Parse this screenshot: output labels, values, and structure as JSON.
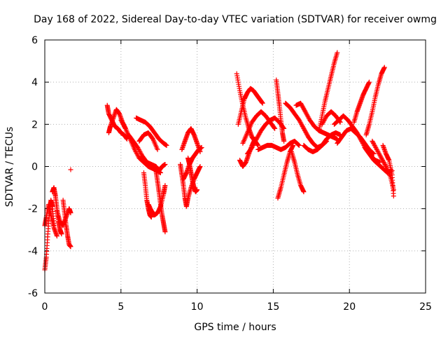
{
  "chart_data": {
    "type": "scatter",
    "title": "Day 168 of 2022, Sidereal Day-to-day VTEC variation (SDTVAR) for receiver owmg",
    "xlabel": "GPS time / hours",
    "ylabel": "SDTVAR / TECUs",
    "xlim": [
      0,
      25
    ],
    "ylim": [
      -6,
      6
    ],
    "x_ticks": [
      0,
      5,
      10,
      15,
      20,
      25
    ],
    "y_ticks": [
      -6,
      -4,
      -2,
      0,
      2,
      4,
      6
    ],
    "x_tick_labels": [
      "0",
      "5",
      "10",
      "15",
      "20",
      "25"
    ],
    "y_tick_labels": [
      "-6",
      "-4",
      "-2",
      "0",
      "2",
      "4",
      "6"
    ],
    "grid": true,
    "marker": "+",
    "color": "#ff0000",
    "series": [
      {
        "name": "SDTVAR",
        "tracks": [
          {
            "x": [
              0.0,
              0.1,
              0.2,
              0.3,
              0.4,
              0.5,
              0.6
            ],
            "y": [
              -4.9,
              -4.3,
              -3.2,
              -2.2,
              -1.6,
              -1.9,
              -2.8
            ]
          },
          {
            "x": [
              0.0,
              0.1,
              0.25,
              0.4,
              0.6,
              0.8
            ],
            "y": [
              -2.8,
              -2.4,
              -1.8,
              -2.3,
              -2.9,
              -3.3
            ]
          },
          {
            "x": [
              0.5,
              0.6,
              0.7,
              0.8,
              0.9,
              1.0,
              1.1
            ],
            "y": [
              -1.2,
              -1.0,
              -1.4,
              -2.0,
              -2.6,
              -3.0,
              -3.2
            ]
          },
          {
            "x": [
              0.8,
              1.0,
              1.2,
              1.4,
              1.6,
              1.7
            ],
            "y": [
              -2.1,
              -2.6,
              -2.8,
              -2.4,
              -2.0,
              -2.2
            ]
          },
          {
            "x": [
              1.2,
              1.3,
              1.4,
              1.5,
              1.6,
              1.7
            ],
            "y": [
              -1.6,
              -2.2,
              -2.8,
              -3.3,
              -3.7,
              -3.8
            ]
          },
          {
            "x": [
              1.7
            ],
            "y": [
              -0.15
            ]
          },
          {
            "x": [
              4.1,
              4.2,
              4.4,
              4.6,
              4.8,
              5.0,
              5.2,
              5.4
            ],
            "y": [
              2.9,
              2.5,
              2.2,
              1.9,
              1.8,
              1.6,
              1.5,
              1.3
            ]
          },
          {
            "x": [
              4.2,
              4.3,
              4.5,
              4.7,
              4.9,
              5.1,
              5.3
            ],
            "y": [
              1.6,
              1.9,
              2.3,
              2.7,
              2.5,
              2.1,
              1.8
            ]
          },
          {
            "x": [
              5.0,
              5.3,
              5.6,
              5.9,
              6.2,
              6.5,
              6.8,
              7.1,
              7.4,
              7.6
            ],
            "y": [
              2.2,
              1.8,
              1.3,
              0.8,
              0.4,
              0.2,
              0.0,
              -0.1,
              -0.2,
              -0.3
            ]
          },
          {
            "x": [
              5.5,
              5.8,
              6.1,
              6.4,
              6.7,
              7.0,
              7.3,
              7.5,
              7.7,
              7.9
            ],
            "y": [
              1.5,
              1.2,
              0.9,
              0.5,
              0.2,
              0.1,
              0.0,
              -0.2,
              0.0,
              0.1
            ]
          },
          {
            "x": [
              6.0,
              6.3,
              6.6,
              6.9,
              7.2,
              7.5,
              7.8,
              8.0
            ],
            "y": [
              2.3,
              2.2,
              2.1,
              1.9,
              1.6,
              1.3,
              1.1,
              1.0
            ]
          },
          {
            "x": [
              6.2,
              6.5,
              6.8,
              7.1,
              7.4
            ],
            "y": [
              1.2,
              1.5,
              1.6,
              1.3,
              0.8
            ]
          },
          {
            "x": [
              6.5,
              6.6,
              6.7,
              6.8,
              6.9,
              7.0
            ],
            "y": [
              -0.3,
              -0.9,
              -1.6,
              -2.0,
              -2.3,
              -2.4
            ]
          },
          {
            "x": [
              6.8,
              7.0,
              7.2,
              7.4,
              7.6,
              7.8,
              7.9
            ],
            "y": [
              -1.8,
              -2.1,
              -2.3,
              -2.2,
              -1.9,
              -1.3,
              -0.9
            ]
          },
          {
            "x": [
              7.3,
              7.4,
              7.5,
              7.6,
              7.7,
              7.8,
              7.9
            ],
            "y": [
              -0.2,
              -0.7,
              -1.2,
              -1.8,
              -2.3,
              -2.7,
              -3.1
            ]
          },
          {
            "x": [
              8.9,
              9.0,
              9.1,
              9.2,
              9.3,
              9.4,
              9.6,
              9.8,
              10.0,
              10.2
            ],
            "y": [
              0.1,
              -0.4,
              -0.9,
              -1.5,
              -1.9,
              -1.5,
              -1.0,
              -0.6,
              -0.3,
              0.0
            ]
          },
          {
            "x": [
              9.0,
              9.2,
              9.4,
              9.6,
              9.8,
              10.0,
              10.2
            ],
            "y": [
              0.8,
              1.2,
              1.6,
              1.8,
              1.5,
              1.1,
              0.7
            ]
          },
          {
            "x": [
              9.1,
              9.3,
              9.5,
              9.7,
              9.9,
              10.1,
              10.3
            ],
            "y": [
              -0.6,
              -0.3,
              0.1,
              0.4,
              0.6,
              0.8,
              0.9
            ]
          },
          {
            "x": [
              9.4,
              9.5,
              9.6,
              9.7,
              9.8,
              9.9,
              10.0
            ],
            "y": [
              0.4,
              0.1,
              -0.3,
              -0.7,
              -1.0,
              -1.2,
              -1.1
            ]
          },
          {
            "x": [
              12.6,
              12.8,
              13.0,
              13.2,
              13.4,
              13.6,
              13.8,
              14.0
            ],
            "y": [
              4.4,
              3.6,
              2.9,
              2.3,
              1.8,
              1.4,
              1.2,
              1.0
            ]
          },
          {
            "x": [
              12.7,
              12.9,
              13.1,
              13.3,
              13.5,
              13.7,
              13.9,
              14.1,
              14.3
            ],
            "y": [
              2.0,
              2.6,
              3.2,
              3.5,
              3.7,
              3.6,
              3.4,
              3.2,
              3.0
            ]
          },
          {
            "x": [
              12.8,
              13.0,
              13.2,
              13.4,
              13.6,
              13.8
            ],
            "y": [
              0.3,
              0.0,
              0.2,
              0.6,
              1.0,
              1.3
            ]
          },
          {
            "x": [
              13.0,
              13.3,
              13.6,
              13.9,
              14.2,
              14.5,
              14.8,
              15.1
            ],
            "y": [
              1.1,
              1.6,
              2.1,
              2.4,
              2.6,
              2.4,
              2.1,
              1.8
            ]
          },
          {
            "x": [
              13.3,
              13.6,
              13.9,
              14.2,
              14.5,
              14.8,
              15.1,
              15.4,
              15.7
            ],
            "y": [
              0.6,
              0.9,
              1.3,
              1.7,
              2.0,
              2.2,
              2.3,
              2.1,
              1.8
            ]
          },
          {
            "x": [
              14.0,
              14.3,
              14.6,
              14.9,
              15.2,
              15.5,
              15.8,
              16.1,
              16.4,
              16.7
            ],
            "y": [
              0.8,
              0.9,
              1.0,
              1.0,
              0.9,
              0.8,
              0.9,
              1.1,
              1.2,
              1.0
            ]
          },
          {
            "x": [
              15.2,
              15.3,
              15.4,
              15.5,
              15.6,
              15.7
            ],
            "y": [
              4.1,
              3.5,
              2.9,
              2.2,
              1.6,
              1.2
            ]
          },
          {
            "x": [
              15.3,
              15.5,
              15.7,
              15.9,
              16.1,
              16.3
            ],
            "y": [
              -1.5,
              -1.0,
              -0.4,
              0.2,
              0.7,
              1.0
            ]
          },
          {
            "x": [
              15.8,
              16.1,
              16.4,
              16.7,
              17.0,
              17.3,
              17.6,
              17.9,
              18.2,
              18.5
            ],
            "y": [
              3.0,
              2.8,
              2.5,
              2.2,
              1.8,
              1.4,
              1.1,
              0.9,
              1.0,
              1.2
            ]
          },
          {
            "x": [
              16.2,
              16.4,
              16.6,
              16.8,
              17.0
            ],
            "y": [
              0.7,
              0.2,
              -0.4,
              -0.9,
              -1.2
            ]
          },
          {
            "x": [
              16.5,
              16.8,
              17.1,
              17.4,
              17.7,
              18.0,
              18.3,
              18.6,
              18.9,
              19.2
            ],
            "y": [
              2.9,
              3.0,
              2.6,
              2.2,
              1.9,
              1.7,
              1.6,
              1.5,
              1.4,
              1.3
            ]
          },
          {
            "x": [
              17.0,
              17.3,
              17.6,
              17.9,
              18.2,
              18.5,
              18.8,
              19.1,
              19.4
            ],
            "y": [
              1.0,
              0.8,
              0.7,
              0.8,
              1.0,
              1.3,
              1.5,
              1.6,
              1.5
            ]
          },
          {
            "x": [
              18.0,
              18.2,
              18.4,
              18.6,
              18.8,
              19.0,
              19.2
            ],
            "y": [
              1.7,
              2.4,
              3.1,
              3.7,
              4.3,
              4.9,
              5.4
            ]
          },
          {
            "x": [
              18.2,
              18.5,
              18.8,
              19.1,
              19.4
            ],
            "y": [
              2.0,
              2.4,
              2.6,
              2.4,
              2.1
            ]
          },
          {
            "x": [
              19.0,
              19.3,
              19.6,
              19.9,
              20.2,
              20.5,
              20.8,
              21.1,
              21.4,
              21.7,
              22.0
            ],
            "y": [
              2.0,
              2.2,
              2.4,
              2.2,
              1.9,
              1.6,
              1.2,
              0.8,
              0.5,
              0.3,
              0.2
            ]
          },
          {
            "x": [
              19.2,
              19.5,
              19.8,
              20.1,
              20.4,
              20.7,
              21.0,
              21.3,
              21.6
            ],
            "y": [
              1.1,
              1.4,
              1.7,
              1.8,
              1.6,
              1.4,
              1.1,
              0.8,
              0.6
            ]
          },
          {
            "x": [
              20.3,
              20.5,
              20.7,
              20.9,
              21.1,
              21.3
            ],
            "y": [
              2.1,
              2.6,
              3.0,
              3.4,
              3.7,
              4.0
            ]
          },
          {
            "x": [
              21.1,
              21.3,
              21.5,
              21.7,
              21.9,
              22.1,
              22.3
            ],
            "y": [
              1.5,
              2.0,
              2.6,
              3.3,
              3.9,
              4.4,
              4.7
            ]
          },
          {
            "x": [
              21.0,
              21.3,
              21.6,
              21.9,
              22.2,
              22.5,
              22.8
            ],
            "y": [
              0.9,
              0.6,
              0.3,
              0.1,
              -0.1,
              -0.3,
              -0.2
            ]
          },
          {
            "x": [
              21.5,
              21.8,
              22.1,
              22.4,
              22.7,
              22.9
            ],
            "y": [
              1.2,
              0.8,
              0.4,
              0.0,
              -0.5,
              -1.1
            ]
          },
          {
            "x": [
              22.2,
              22.4,
              22.6,
              22.8,
              22.9
            ],
            "y": [
              1.0,
              0.6,
              0.3,
              -0.4,
              -1.4
            ]
          }
        ]
      }
    ]
  }
}
